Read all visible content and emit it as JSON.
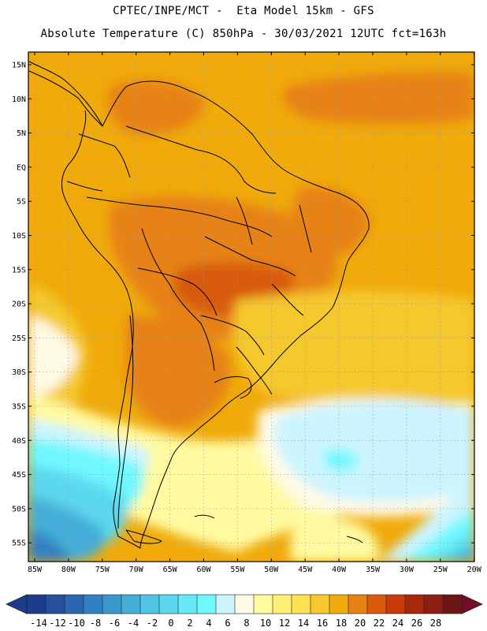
{
  "header": {
    "line1": "CPTEC/INPE/MCT -  Eta Model 15km - GFS",
    "line2": "Absolute Temperature (C) 850hPa - 30/03/2021 12UTC fct=163h"
  },
  "map": {
    "lat_labels": [
      "15N",
      "10N",
      "5N",
      "EQ",
      "5S",
      "10S",
      "15S",
      "20S",
      "25S",
      "30S",
      "35S",
      "40S",
      "45S",
      "50S",
      "55S"
    ],
    "lon_labels": [
      "85W",
      "80W",
      "75W",
      "70W",
      "65W",
      "60W",
      "55W",
      "50W",
      "45W",
      "40W",
      "35W",
      "30W",
      "25W",
      "20W"
    ]
  },
  "colorbar": {
    "labels": [
      "-14",
      "-12",
      "-10",
      "-8",
      "-6",
      "-4",
      "-2",
      "0",
      "2",
      "4",
      "6",
      "8",
      "10",
      "12",
      "14",
      "16",
      "18",
      "20",
      "22",
      "24",
      "26",
      "28"
    ],
    "colors": [
      "#1e3c8c",
      "#24509e",
      "#2a66b2",
      "#3080c4",
      "#3a98cc",
      "#44aed8",
      "#50c4e4",
      "#5cd8ee",
      "#66e8f6",
      "#70f8ff",
      "#ccf4ff",
      "#fffae6",
      "#fffaa0",
      "#fff078",
      "#ffe050",
      "#f5c82d",
      "#f0aa0a",
      "#e68214",
      "#d85a0a",
      "#c83c0a",
      "#aa280a",
      "#8c1e14",
      "#6e1414"
    ],
    "left_arrow_color": "#1e3c8c",
    "right_arrow_color": "#780c28"
  },
  "colors": {
    "warm_background": "#f0aa0a",
    "hot": "#e68214",
    "hotter": "#d85a0a",
    "mild": "#f5c82d",
    "pale": "#fffaa0",
    "cream": "#fffae6",
    "light_blue": "#ccf4ff",
    "cyan": "#70f8ff",
    "aqua": "#5cd8ee",
    "blue": "#44aed8",
    "dark_blue": "#3080c4",
    "deep_blue": "#24509e"
  }
}
